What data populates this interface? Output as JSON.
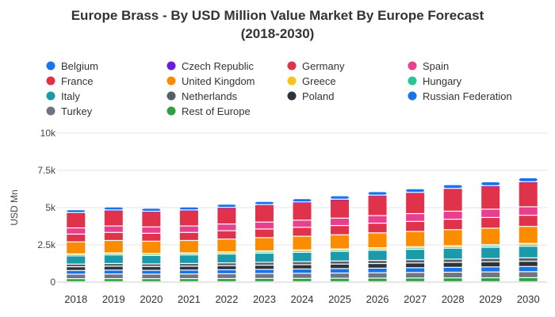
{
  "chart_data": {
    "type": "bar",
    "stacked": true,
    "title": "Europe Brass - By USD Million Value Market By Europe Forecast",
    "subtitle": "(2018-2030)",
    "xlabel": "",
    "ylabel": "USD Mn",
    "ylim": [
      0,
      10000
    ],
    "y_ticks": [
      0,
      2500,
      5000,
      7500,
      10000
    ],
    "y_tick_labels": [
      "0",
      "2.5k",
      "5k",
      "7.5k",
      "10k"
    ],
    "grid": true,
    "legend_position": "top",
    "categories": [
      "2018",
      "2019",
      "2020",
      "2021",
      "2022",
      "2023",
      "2024",
      "2025",
      "2026",
      "2027",
      "2028",
      "2029",
      "2030"
    ],
    "series": [
      {
        "name": "Rest of Europe",
        "color": "#2ea043",
        "values": [
          200,
          205,
          200,
          205,
          210,
          215,
          220,
          228,
          236,
          244,
          252,
          260,
          268
        ]
      },
      {
        "name": "Turkey",
        "color": "#6e7681",
        "values": [
          300,
          310,
          305,
          310,
          320,
          330,
          340,
          350,
          360,
          370,
          380,
          390,
          400
        ]
      },
      {
        "name": "Russian Federation",
        "color": "#1a73e8",
        "values": [
          250,
          260,
          255,
          260,
          270,
          280,
          290,
          300,
          310,
          320,
          330,
          340,
          350
        ]
      },
      {
        "name": "Poland",
        "color": "#2d333b",
        "values": [
          250,
          260,
          255,
          260,
          270,
          280,
          290,
          300,
          310,
          320,
          330,
          340,
          350
        ]
      },
      {
        "name": "Netherlands",
        "color": "#57606a",
        "values": [
          180,
          185,
          180,
          185,
          190,
          195,
          200,
          205,
          210,
          215,
          220,
          225,
          230
        ]
      },
      {
        "name": "Italy",
        "color": "#1b9aaa",
        "values": [
          550,
          570,
          560,
          570,
          590,
          610,
          630,
          650,
          680,
          700,
          730,
          750,
          780
        ]
      },
      {
        "name": "Hungary",
        "color": "#2bc497",
        "values": [
          80,
          82,
          80,
          82,
          85,
          88,
          90,
          93,
          96,
          99,
          102,
          105,
          108
        ]
      },
      {
        "name": "Greece",
        "color": "#f5c518",
        "values": [
          60,
          62,
          60,
          62,
          64,
          66,
          68,
          70,
          72,
          74,
          76,
          78,
          80
        ]
      },
      {
        "name": "United Kingdom",
        "color": "#fb8c00",
        "values": [
          800,
          830,
          820,
          830,
          860,
          890,
          920,
          950,
          1000,
          1030,
          1070,
          1100,
          1140
        ]
      },
      {
        "name": "France",
        "color": "#e0324b",
        "values": [
          520,
          540,
          530,
          540,
          560,
          580,
          600,
          620,
          650,
          670,
          700,
          720,
          750
        ]
      },
      {
        "name": "Spain",
        "color": "#e8408f",
        "values": [
          420,
          435,
          430,
          435,
          450,
          465,
          480,
          495,
          510,
          525,
          540,
          555,
          570
        ]
      },
      {
        "name": "Germany",
        "color": "#e0324b",
        "values": [
          1000,
          1050,
          1030,
          1050,
          1100,
          1150,
          1200,
          1250,
          1350,
          1400,
          1500,
          1550,
          1650
        ]
      },
      {
        "name": "Czech Republic",
        "color": "#6a1de0",
        "values": [
          20,
          20,
          20,
          20,
          21,
          22,
          23,
          24,
          25,
          26,
          27,
          28,
          29
        ]
      },
      {
        "name": "Belgium",
        "color": "#1a73e8",
        "values": [
          200,
          205,
          200,
          205,
          210,
          215,
          220,
          228,
          236,
          244,
          252,
          260,
          268
        ]
      }
    ],
    "legend_order": [
      "Belgium",
      "Czech Republic",
      "Germany",
      "Spain",
      "France",
      "United Kingdom",
      "Greece",
      "Hungary",
      "Italy",
      "Netherlands",
      "Poland",
      "Russian Federation",
      "Turkey",
      "Rest of Europe"
    ]
  }
}
